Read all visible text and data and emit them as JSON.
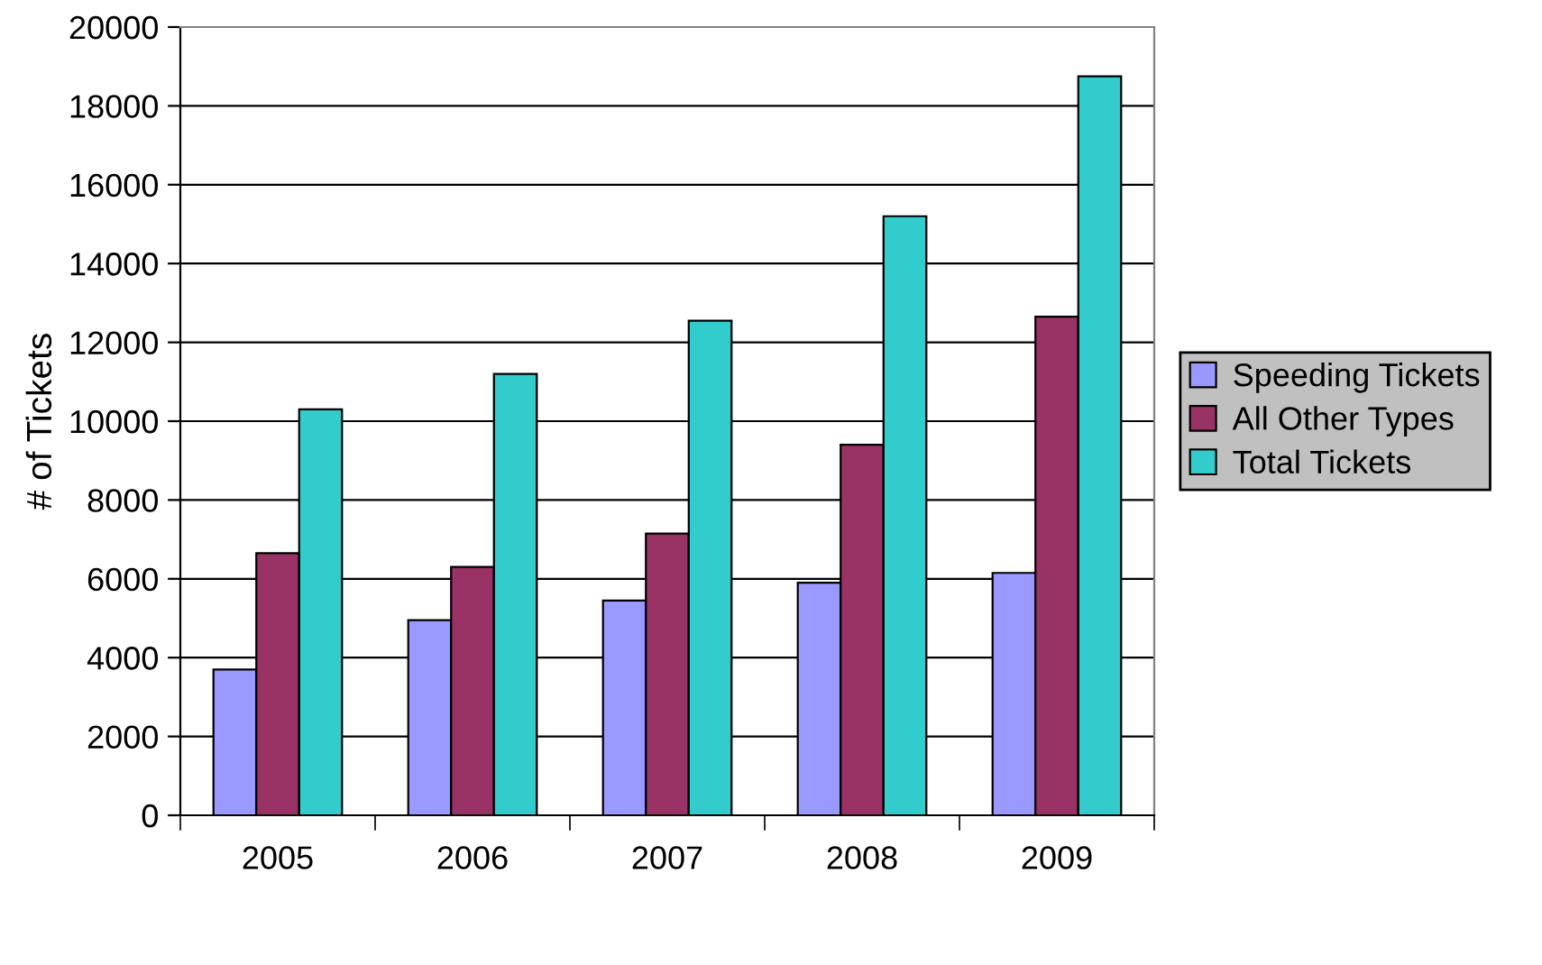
{
  "chart_data": {
    "type": "bar",
    "ylabel": "# of Tickets",
    "categories": [
      "2005",
      "2006",
      "2007",
      "2008",
      "2009"
    ],
    "series": [
      {
        "name": "Speeding Tickets",
        "color": "#9999ff",
        "values": [
          3700,
          4950,
          5450,
          5900,
          6150
        ]
      },
      {
        "name": "All Other Types",
        "color": "#993366",
        "values": [
          6650,
          6300,
          7150,
          9400,
          12650
        ]
      },
      {
        "name": "Total Tickets",
        "color": "#33cccc",
        "values": [
          10300,
          11200,
          12550,
          15200,
          18750
        ]
      }
    ],
    "ylim": [
      0,
      20000
    ],
    "yticks": [
      0,
      2000,
      4000,
      6000,
      8000,
      10000,
      12000,
      14000,
      16000,
      18000,
      20000
    ],
    "grid": "y",
    "legend": "right"
  }
}
